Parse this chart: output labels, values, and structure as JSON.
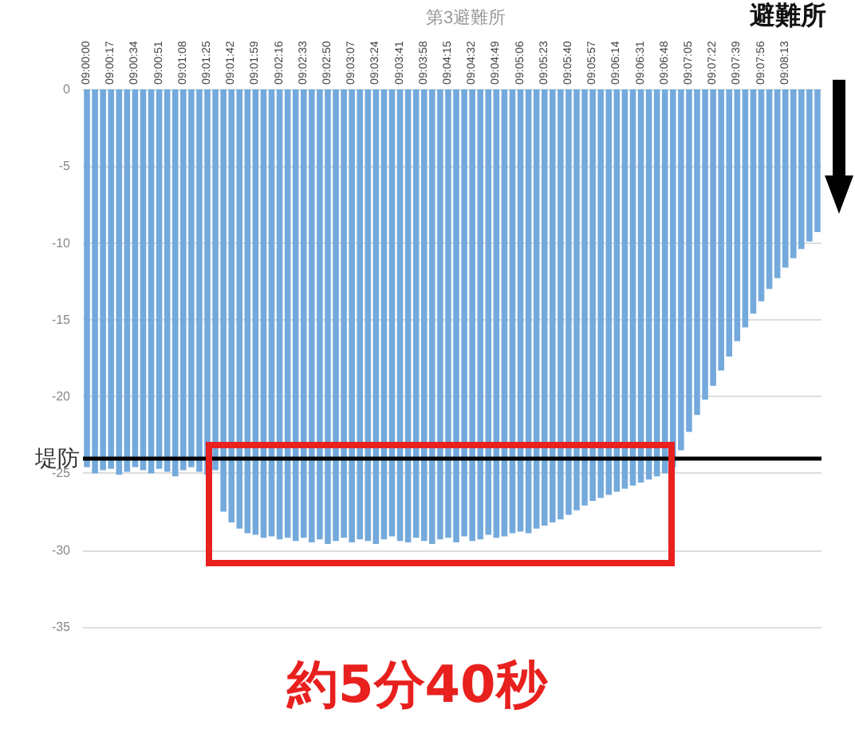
{
  "chart_data": {
    "type": "bar",
    "title": "第3避難所",
    "categories": [
      "09:00:00",
      null,
      null,
      "09:00:17",
      null,
      null,
      "09:00:34",
      null,
      null,
      "09:00:51",
      null,
      null,
      "09:01:08",
      null,
      null,
      "09:01:25",
      null,
      null,
      "09:01:42",
      null,
      null,
      "09:01:59",
      null,
      null,
      "09:02:16",
      null,
      null,
      "09:02:33",
      null,
      null,
      "09:02:50",
      null,
      null,
      "09:03:07",
      null,
      null,
      "09:03:24",
      null,
      null,
      "09:03:41",
      null,
      null,
      "09:03:58",
      null,
      null,
      "09:04:15",
      null,
      null,
      "09:04:32",
      null,
      null,
      "09:04:49",
      null,
      null,
      "09:05:06",
      null,
      null,
      "09:05:23",
      null,
      null,
      "09:05:40",
      null,
      null,
      "09:05:57",
      null,
      null,
      "09:06:14",
      null,
      null,
      "09:06:31",
      null,
      null,
      "09:06:48",
      null,
      null,
      "09:07:05",
      null,
      null,
      "09:07:22",
      null,
      null,
      "09:07:39",
      null,
      null,
      "09:07:56",
      null,
      null,
      "09:08:13",
      null,
      null,
      null,
      null
    ],
    "values": [
      -24.6,
      -25,
      -24.8,
      -24.7,
      -25.1,
      -24.9,
      -24.6,
      -24.8,
      -25,
      -24.7,
      -24.9,
      -25.2,
      -24.8,
      -24.6,
      -24.9,
      -25.1,
      -24.8,
      -27.5,
      -28.2,
      -28.6,
      -28.9,
      -29,
      -29.2,
      -29.1,
      -29.3,
      -29.2,
      -29.4,
      -29.2,
      -29.5,
      -29.3,
      -29.6,
      -29.4,
      -29.2,
      -29.5,
      -29.3,
      -29.4,
      -29.6,
      -29.3,
      -29.1,
      -29.4,
      -29.5,
      -29.2,
      -29.4,
      -29.6,
      -29.3,
      -29.2,
      -29.5,
      -29.1,
      -29.4,
      -29.3,
      -29,
      -29.2,
      -29.1,
      -28.9,
      -28.8,
      -28.9,
      -28.6,
      -28.4,
      -28.2,
      -28,
      -27.7,
      -27.4,
      -27.1,
      -26.8,
      -26.6,
      -26.4,
      -26.2,
      -26,
      -25.8,
      -25.6,
      -25.4,
      -25.2,
      -25,
      -24.6,
      -23.5,
      -22.3,
      -21.2,
      -20.2,
      -19.3,
      -18.3,
      -17.4,
      -16.4,
      -15.5,
      -14.6,
      -13.8,
      -13,
      -12.3,
      -11.6,
      -11,
      -10.4,
      -9.9,
      -9.3
    ],
    "color": "#74a9dc",
    "ylim": [
      -35,
      0
    ],
    "yticks": [
      0,
      -5,
      -10,
      -15,
      -20,
      -25,
      -30,
      -35
    ],
    "grid": "y",
    "ref_lines": [
      {
        "axis": "y",
        "value": -24,
        "label": "堤防",
        "color": "#000000"
      }
    ],
    "annotations": [
      "避難所",
      "約5分40秒"
    ]
  }
}
